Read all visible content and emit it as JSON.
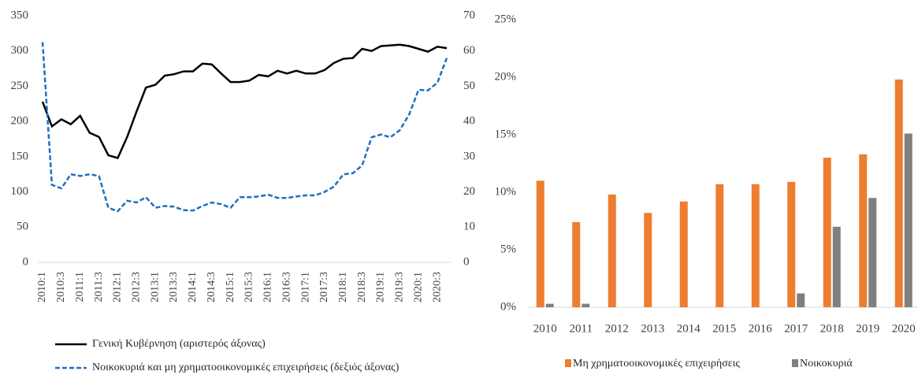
{
  "chart_data": [
    {
      "type": "line",
      "categories": [
        "2010:1",
        null,
        "2010:3",
        null,
        "2011:1",
        null,
        "2011:3",
        null,
        "2012:1",
        null,
        "2012:3",
        null,
        "2013:1",
        null,
        "2013:3",
        null,
        "2014:1",
        null,
        "2014:3",
        null,
        "2015:1",
        null,
        "2015:3",
        null,
        "2016:1",
        null,
        "2016:3",
        null,
        "2017:1",
        null,
        "2017:3",
        null,
        "2018:1",
        null,
        "2018:3",
        null,
        "2019:1",
        null,
        "2019:3",
        null,
        "2020:1",
        null,
        "2020:3",
        null
      ],
      "ylim": [
        0,
        350
      ],
      "yticks": [
        0,
        50,
        100,
        150,
        200,
        250,
        300,
        350
      ],
      "y2lim": [
        0,
        70
      ],
      "y2ticks": [
        0,
        10,
        20,
        30,
        40,
        50,
        60,
        70
      ],
      "series": [
        {
          "name": "Γενική Κυβέρνηση (αριστερός άξονας)",
          "color": "#000000",
          "style": "solid",
          "values": [
            228,
            193,
            203,
            196,
            208,
            184,
            178,
            152,
            148,
            178,
            214,
            248,
            252,
            265,
            267,
            271,
            271,
            282,
            281,
            268,
            256,
            256,
            258,
            266,
            264,
            272,
            268,
            272,
            268,
            268,
            273,
            283,
            289,
            290,
            303,
            300,
            307,
            308,
            309,
            307,
            303,
            299,
            306,
            304
          ]
        },
        {
          "name": "Νοικοκυριά και μη χρηματοοικονομικές επιχειρήσεις (δεξιός άξονας)",
          "color": "#1f6fc0",
          "style": "dashed",
          "axis": "y2",
          "values": [
            62.5,
            22,
            21,
            25,
            24.5,
            25,
            24.5,
            15.5,
            14.5,
            17.5,
            17,
            18.5,
            15.5,
            16,
            15.8,
            14.8,
            14.7,
            16,
            17,
            16.5,
            15.5,
            18.5,
            18.5,
            18.7,
            19.2,
            18.3,
            18.3,
            18.7,
            19,
            19,
            20,
            21.5,
            25,
            25.3,
            27.5,
            35.5,
            36.3,
            35.5,
            37.5,
            42,
            49,
            48.8,
            51,
            58
          ]
        }
      ]
    },
    {
      "type": "bar",
      "categories": [
        "2010",
        "2011",
        "2012",
        "2013",
        "2014",
        "2015",
        "2016",
        "2017",
        "2018",
        "2019",
        "2020"
      ],
      "ylim": [
        0,
        25
      ],
      "yticks": [
        {
          "value": 0,
          "label": "0%"
        },
        {
          "value": 5,
          "label": "5%"
        },
        {
          "value": 10,
          "label": "10%"
        },
        {
          "value": 15,
          "label": "15%"
        },
        {
          "value": 20,
          "label": "20%"
        },
        {
          "value": 25,
          "label": "25%"
        }
      ],
      "series": [
        {
          "name": "Μη χρηματοοικονομικές επιχειρήσεις",
          "color": "#ed7d31",
          "values": [
            11.0,
            7.4,
            9.8,
            8.2,
            9.2,
            10.7,
            10.7,
            10.9,
            13.0,
            13.3,
            19.8
          ]
        },
        {
          "name": "Νοικοκυριά",
          "color": "#7f7f7f",
          "values": [
            0.3,
            0.3,
            0,
            0,
            0,
            0,
            0,
            1.2,
            7.0,
            9.5,
            15.1
          ]
        }
      ]
    }
  ]
}
